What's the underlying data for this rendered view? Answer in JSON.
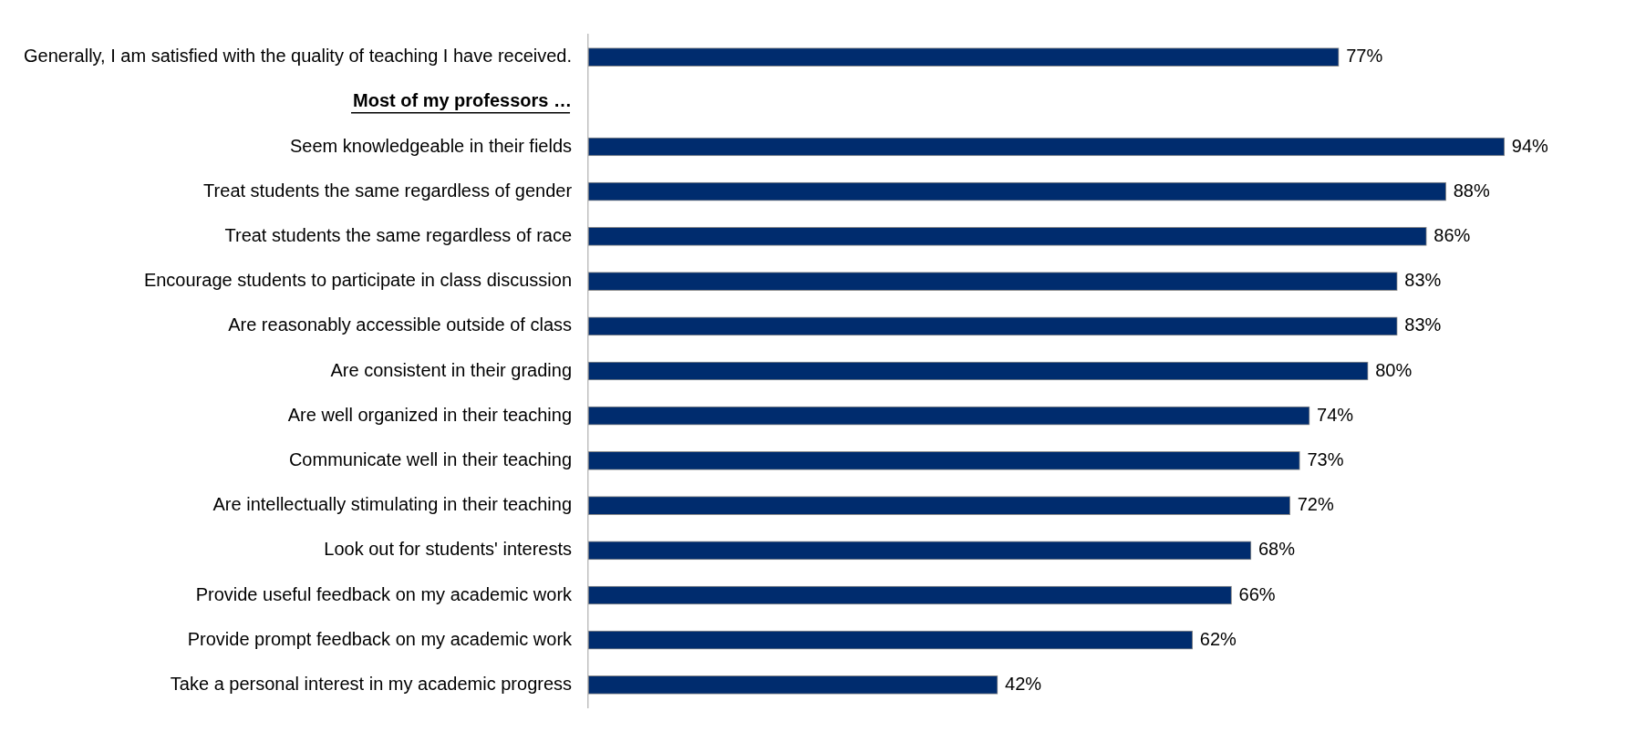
{
  "chart_data": {
    "type": "bar",
    "orientation": "horizontal",
    "categories": [
      "Generally, I am satisfied with the quality of teaching I have received.",
      "Most of my professors …",
      "Seem knowledgeable in their fields",
      "Treat students the same regardless of gender",
      "Treat students the same regardless of race",
      "Encourage students to participate in class discussion",
      "Are reasonably accessible outside of class",
      "Are consistent in their grading",
      "Are well organized in their teaching",
      "Communicate well in their teaching",
      "Are intellectually stimulating in their teaching",
      "Look out for students' interests",
      "Provide useful feedback on my academic work",
      "Provide prompt feedback on my academic work",
      "Take a personal interest in my academic progress"
    ],
    "values": [
      77,
      null,
      94,
      88,
      86,
      83,
      83,
      80,
      74,
      73,
      72,
      68,
      66,
      62,
      42
    ],
    "value_labels": [
      "77%",
      null,
      "94%",
      "88%",
      "86%",
      "83%",
      "83%",
      "80%",
      "74%",
      "73%",
      "72%",
      "68%",
      "66%",
      "62%",
      "42%"
    ],
    "color": "#002c6e",
    "tick_labels": "y",
    "grid": false,
    "legend": false
  }
}
